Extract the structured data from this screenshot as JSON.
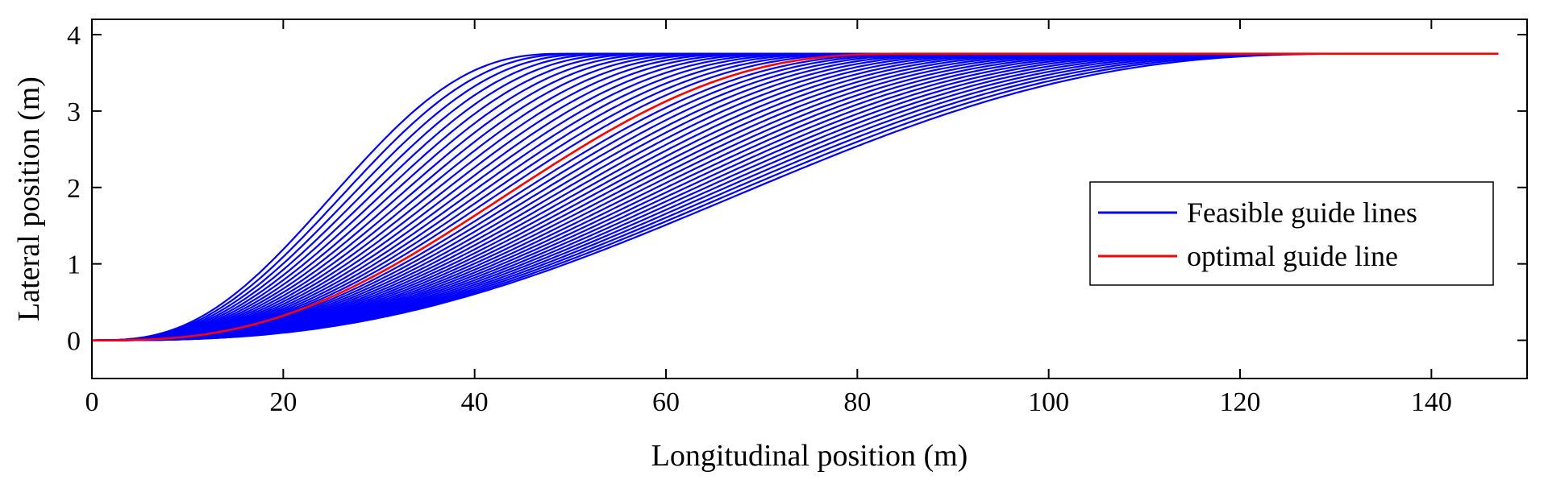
{
  "chart_data": {
    "type": "line",
    "title": "",
    "xlabel": "Longitudinal position (m)",
    "ylabel": "Lateral position (m)",
    "xlim": [
      0,
      150
    ],
    "ylim": [
      -0.5,
      4.2
    ],
    "xticks": [
      0,
      20,
      40,
      60,
      80,
      100,
      120,
      140
    ],
    "yticks": [
      0,
      1,
      2,
      3,
      4
    ],
    "grid": false,
    "legend_position": "right",
    "lane_offset": 3.75,
    "curve_start_x": 0,
    "curve_end_x": 147,
    "feasible_transition_lengths": [
      50,
      52,
      54,
      56,
      58,
      60,
      62,
      64,
      66,
      68,
      70,
      72,
      74,
      76,
      78,
      80,
      82,
      84,
      86,
      88,
      90,
      92,
      94,
      96,
      98,
      100,
      102,
      104,
      106,
      108,
      110,
      112,
      114,
      116,
      118,
      120,
      122,
      124,
      126,
      128,
      130,
      132,
      134
    ],
    "optimal_transition_length": 86,
    "series": [
      {
        "name": "Feasible guide lines",
        "color": "#0000ff"
      },
      {
        "name": "optimal guide line",
        "color": "#ff0000"
      }
    ]
  }
}
